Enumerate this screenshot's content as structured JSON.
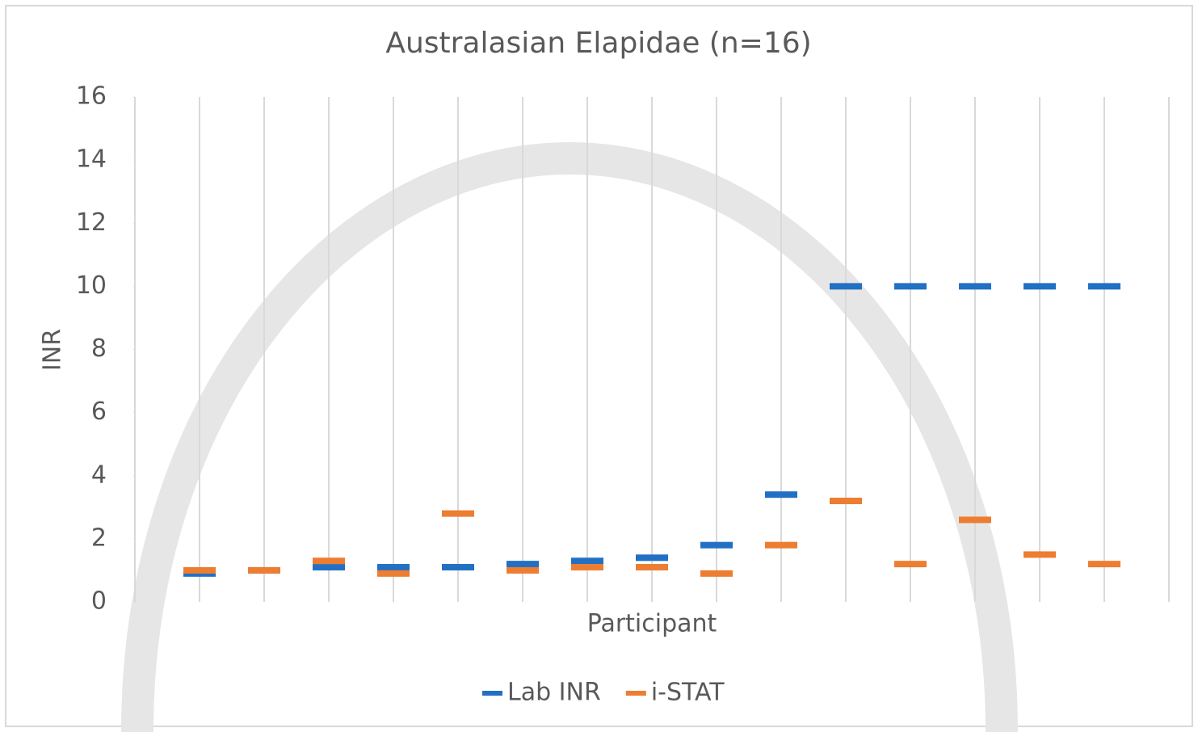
{
  "chart_data": {
    "type": "marker",
    "title": "Australasian Elapidae (n=16)",
    "x_label": "Participant",
    "y_label": "INR",
    "categories": [
      null,
      null,
      null,
      null,
      null,
      null,
      null,
      null,
      null,
      null,
      null,
      null,
      null,
      null,
      null,
      null
    ],
    "series": [
      {
        "name": "Lab INR",
        "color": "#2270c4",
        "values": [
          0.9,
          1.0,
          1.1,
          1.1,
          1.1,
          1.2,
          1.3,
          1.4,
          1.8,
          3.4,
          10,
          10,
          10,
          10,
          10,
          null
        ]
      },
      {
        "name": "i-STAT",
        "color": "#ed7d31",
        "values": [
          1.0,
          1.0,
          1.3,
          0.9,
          2.8,
          1.0,
          1.1,
          1.1,
          0.9,
          1.8,
          3.2,
          1.2,
          2.6,
          1.5,
          1.2,
          null
        ]
      }
    ],
    "ylim": [
      0,
      16
    ],
    "yticks": [
      0,
      2,
      4,
      6,
      8,
      10,
      12,
      14,
      16
    ],
    "grid": true
  }
}
